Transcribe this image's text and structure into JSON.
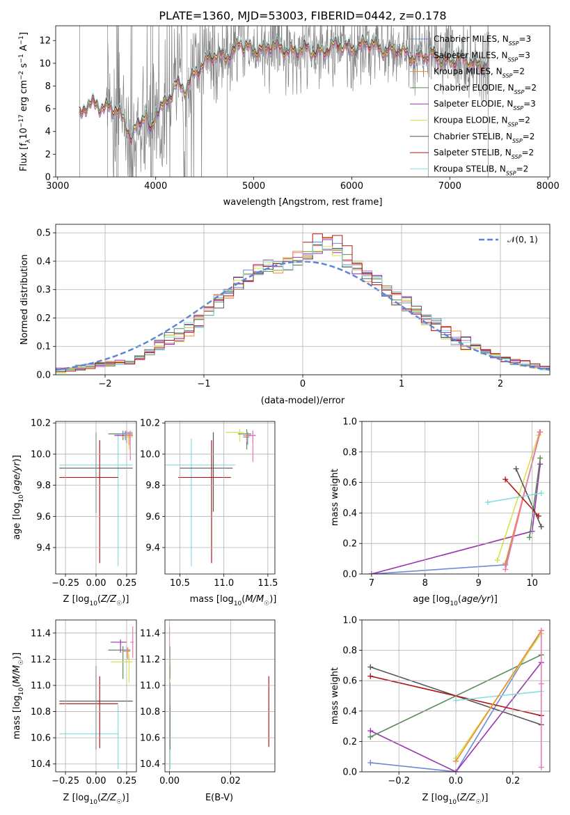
{
  "title": "PLATE=1360, MJD=53003, FIBERID=0442, z=0.178",
  "colors": {
    "data": "#808080",
    "Chabrier MILES": "#6a89d8",
    "Salpeter MILES": "#e879b6",
    "Kroupa MILES": "#f08a2e",
    "Chabrier ELODIE": "#5a8a5a",
    "Salpeter ELODIE": "#9a33b0",
    "Kroupa ELODIE": "#d6e34a",
    "Chabrier STELIB": "#555555",
    "Salpeter STELIB": "#b01818",
    "Kroupa STELIB": "#87dede",
    "gaussian": "#5b86d6"
  },
  "legend": [
    {
      "name": "Chabrier MILES",
      "nssp": "3"
    },
    {
      "name": "Salpeter MILES",
      "nssp": "3"
    },
    {
      "name": "Kroupa MILES",
      "nssp": "2"
    },
    {
      "name": "Chabrier ELODIE",
      "nssp": "2"
    },
    {
      "name": "Salpeter ELODIE",
      "nssp": "3"
    },
    {
      "name": "Kroupa ELODIE",
      "nssp": "2"
    },
    {
      "name": "Chabrier STELIB",
      "nssp": "2"
    },
    {
      "name": "Salpeter STELIB",
      "nssp": "2"
    },
    {
      "name": "Kroupa STELIB",
      "nssp": "2"
    }
  ],
  "chart_data": [
    {
      "id": "spectrum",
      "type": "line",
      "xlabel": "wavelength [Angstrom, rest frame]",
      "ylabel": "Flux [f_λ 10^-17 erg cm^-2 s^-1 A^-1]",
      "xlim": [
        2980,
        8020
      ],
      "ylim": [
        0,
        13.3
      ],
      "xticks": [
        3000,
        4000,
        5000,
        6000,
        7000,
        8000
      ],
      "yticks": [
        0,
        2,
        4,
        6,
        8,
        10,
        12
      ],
      "grid": false,
      "legend_position": "right",
      "data_range": [
        3220,
        7400
      ],
      "model_range": [
        3220,
        7400
      ],
      "continuum_points": {
        "x": [
          3220,
          3300,
          3400,
          3500,
          3600,
          3700,
          3750,
          3800,
          3900,
          3950,
          4000,
          4100,
          4200,
          4300,
          4400,
          4600,
          4800,
          4860,
          4900,
          5000,
          5200,
          5400,
          5600,
          5800,
          6000,
          6200,
          6400,
          6600,
          6800,
          7000,
          7200,
          7400
        ],
        "y": [
          5.2,
          6.2,
          6.5,
          6.2,
          5.8,
          4.6,
          3.6,
          4.5,
          5.5,
          3.4,
          5.9,
          6.6,
          8.0,
          7.6,
          9.4,
          10.6,
          11.0,
          11.9,
          11.2,
          11.3,
          11.4,
          11.2,
          11.0,
          11.4,
          11.5,
          11.6,
          11.2,
          10.7,
          10.6,
          10.3,
          10.1,
          9.9
        ]
      }
    },
    {
      "id": "residuals",
      "type": "step",
      "xlabel": "(data-model)/error",
      "ylabel": "Normed distribution",
      "xlim": [
        -2.5,
        2.5
      ],
      "ylim": [
        0,
        0.53
      ],
      "xticks": [
        -2,
        -1,
        0,
        1,
        2
      ],
      "yticks": [
        0.0,
        0.1,
        0.2,
        0.3,
        0.4,
        0.5
      ],
      "grid": true,
      "legend_position": "top-right",
      "gaussian_label": "𝒩(0, 1)",
      "bins": [
        -2.6,
        -2.5,
        -2.4,
        -2.3,
        -2.2,
        -2.1,
        -2.0,
        -1.9,
        -1.8,
        -1.7,
        -1.6,
        -1.5,
        -1.4,
        -1.3,
        -1.2,
        -1.1,
        -1.0,
        -0.9,
        -0.8,
        -0.7,
        -0.6,
        -0.5,
        -0.4,
        -0.3,
        -0.2,
        -0.1,
        0.0,
        0.1,
        0.2,
        0.3,
        0.4,
        0.5,
        0.6,
        0.7,
        0.8,
        0.9,
        1.0,
        1.1,
        1.2,
        1.3,
        1.4,
        1.5,
        1.6,
        1.7,
        1.8,
        1.9,
        2.0,
        2.1,
        2.2,
        2.3,
        2.4,
        2.5,
        2.6
      ],
      "base_values": [
        0.012,
        0.015,
        0.02,
        0.025,
        0.03,
        0.034,
        0.04,
        0.044,
        0.04,
        0.062,
        0.08,
        0.11,
        0.13,
        0.14,
        0.16,
        0.19,
        0.22,
        0.26,
        0.29,
        0.32,
        0.345,
        0.37,
        0.38,
        0.375,
        0.39,
        0.41,
        0.42,
        0.445,
        0.46,
        0.44,
        0.4,
        0.38,
        0.35,
        0.33,
        0.29,
        0.27,
        0.25,
        0.22,
        0.2,
        0.18,
        0.15,
        0.13,
        0.11,
        0.1,
        0.08,
        0.065,
        0.055,
        0.045,
        0.04,
        0.03,
        0.025,
        0.02
      ]
    },
    {
      "id": "age-vs-Z",
      "type": "errorbar",
      "xlabel": "Z [log10(Z/Z☉)]",
      "ylabel": "age [log10(age/yr)]",
      "xlim": [
        -0.33,
        0.33
      ],
      "ylim": [
        9.23,
        10.21
      ],
      "xticks": [
        -0.25,
        0.0,
        0.25
      ],
      "yticks": [
        9.4,
        9.6,
        9.8,
        10.0,
        10.2
      ],
      "grid": true,
      "points": [
        {
          "model": "Kroupa STELIB",
          "x": 0.18,
          "y": 9.93,
          "xerr": [
            0.48,
            0.12
          ],
          "yerr": [
            0.65,
            0.2
          ]
        },
        {
          "model": "Chabrier STELIB",
          "x": 0.0,
          "y": 9.91,
          "xerr": [
            0.3,
            0.3
          ],
          "yerr": [
            0.29,
            0.23
          ]
        },
        {
          "model": "Salpeter STELIB",
          "x": 0.03,
          "y": 9.85,
          "xerr": [
            0.33,
            0.15
          ],
          "yerr": [
            0.55,
            0.24
          ]
        },
        {
          "model": "Chabrier ELODIE",
          "x": 0.22,
          "y": 10.13,
          "xerr": [
            0.12,
            0.08
          ],
          "yerr": [
            0.04,
            0.02
          ]
        },
        {
          "model": "Salpeter ELODIE",
          "x": 0.25,
          "y": 10.12,
          "xerr": [
            0.1,
            0.05
          ],
          "yerr": [
            0.05,
            0.03
          ]
        },
        {
          "model": "Kroupa ELODIE",
          "x": 0.27,
          "y": 10.11,
          "xerr": [
            0.06,
            0.03
          ],
          "yerr": [
            0.08,
            0.03
          ]
        },
        {
          "model": "Salpeter MILES",
          "x": 0.28,
          "y": 10.14,
          "xerr": [
            0.05,
            0.02
          ],
          "yerr": [
            0.18,
            0.01
          ]
        },
        {
          "model": "Kroupa MILES",
          "x": 0.27,
          "y": 10.12,
          "xerr": [
            0.04,
            0.02
          ],
          "yerr": [
            0.06,
            0.02
          ]
        },
        {
          "model": "Chabrier MILES",
          "x": 0.24,
          "y": 10.13,
          "xerr": [
            0.06,
            0.03
          ],
          "yerr": [
            0.04,
            0.02
          ]
        }
      ]
    },
    {
      "id": "age-vs-mass",
      "type": "errorbar",
      "xlabel": "mass [log10(M/M☉)]",
      "ylabel": "",
      "xlim": [
        10.33,
        11.58
      ],
      "ylim": [
        9.23,
        10.21
      ],
      "xticks": [
        10.5,
        11.0,
        11.5
      ],
      "yticks": [
        9.4,
        9.6,
        9.8,
        10.0,
        10.2
      ],
      "grid": true,
      "points": [
        {
          "model": "Kroupa STELIB",
          "x": 10.63,
          "y": 9.93,
          "xerr": [
            0.3,
            0.5
          ],
          "yerr": [
            0.65,
            0.17
          ]
        },
        {
          "model": "Chabrier STELIB",
          "x": 10.88,
          "y": 9.91,
          "xerr": [
            0.38,
            0.22
          ],
          "yerr": [
            0.28,
            0.23
          ]
        },
        {
          "model": "Salpeter STELIB",
          "x": 10.86,
          "y": 9.85,
          "xerr": [
            0.38,
            0.22
          ],
          "yerr": [
            0.55,
            0.24
          ]
        },
        {
          "model": "Kroupa ELODIE",
          "x": 11.18,
          "y": 10.14,
          "xerr": [
            0.16,
            0.05
          ],
          "yerr": [
            0.06,
            0.02
          ]
        },
        {
          "model": "Chabrier ELODIE",
          "x": 11.26,
          "y": 10.13,
          "xerr": [
            0.1,
            0.05
          ],
          "yerr": [
            0.1,
            0.03
          ]
        },
        {
          "model": "Salpeter ELODIE",
          "x": 11.33,
          "y": 10.12,
          "xerr": [
            0.06,
            0.03
          ],
          "yerr": [
            0.05,
            0.03
          ]
        },
        {
          "model": "Salpeter MILES",
          "x": 11.33,
          "y": 10.12,
          "xerr": [
            0.02,
            0.02
          ],
          "yerr": [
            0.17,
            0.03
          ]
        },
        {
          "model": "Chabrier MILES",
          "x": 11.27,
          "y": 10.11,
          "xerr": [
            0.05,
            0.02
          ],
          "yerr": [
            0.05,
            0.03
          ]
        },
        {
          "model": "Kroupa MILES",
          "x": 11.26,
          "y": 10.12,
          "xerr": [
            0.04,
            0.02
          ],
          "yerr": [
            0.04,
            0.02
          ]
        }
      ]
    },
    {
      "id": "mass-weight-vs-age",
      "type": "line",
      "xlabel": "age [log10(age/yr)]",
      "ylabel": "mass weight",
      "xlim": [
        6.82,
        10.33
      ],
      "ylim": [
        0,
        1.0
      ],
      "xticks": [
        7,
        8,
        9,
        10
      ],
      "yticks": [
        0.0,
        0.2,
        0.4,
        0.6,
        0.8,
        1.0
      ],
      "grid": true,
      "series": [
        {
          "model": "Chabrier MILES",
          "x": [
            7.0,
            9.5,
            10.15
          ],
          "y": [
            0.0,
            0.06,
            0.93
          ]
        },
        {
          "model": "Salpeter ELODIE",
          "x": [
            7.0,
            10.0,
            10.15
          ],
          "y": [
            0.0,
            0.28,
            0.72
          ]
        },
        {
          "model": "Kroupa ELODIE",
          "x": [
            9.35,
            10.12
          ],
          "y": [
            0.09,
            0.91
          ]
        },
        {
          "model": "Kroupa MILES",
          "x": [
            9.5,
            10.15
          ],
          "y": [
            0.07,
            0.93
          ]
        },
        {
          "model": "Salpeter MILES",
          "x": [
            9.5,
            10.14
          ],
          "y": [
            0.03,
            0.93
          ]
        },
        {
          "model": "Chabrier ELODIE",
          "x": [
            9.95,
            10.15
          ],
          "y": [
            0.24,
            0.76
          ]
        },
        {
          "model": "Chabrier STELIB",
          "x": [
            9.7,
            10.17
          ],
          "y": [
            0.69,
            0.31
          ]
        },
        {
          "model": "Salpeter STELIB",
          "x": [
            9.5,
            10.12
          ],
          "y": [
            0.62,
            0.38
          ]
        },
        {
          "model": "Kroupa STELIB",
          "x": [
            9.17,
            10.17
          ],
          "y": [
            0.47,
            0.53
          ]
        }
      ]
    },
    {
      "id": "mass-vs-Z",
      "type": "errorbar",
      "xlabel": "Z [log10(Z/Z☉)]",
      "ylabel": "mass [log10(M/M☉)]",
      "xlim": [
        -0.33,
        0.33
      ],
      "ylim": [
        10.34,
        11.5
      ],
      "xticks": [
        -0.25,
        0.0,
        0.25
      ],
      "yticks": [
        10.4,
        10.6,
        10.8,
        11.0,
        11.2,
        11.4
      ],
      "grid": true,
      "points": [
        {
          "model": "Kroupa STELIB",
          "x": 0.18,
          "y": 10.63,
          "xerr": [
            0.48,
            0.0
          ],
          "yerr": [
            0.27,
            0.22
          ]
        },
        {
          "model": "Chabrier STELIB",
          "x": 0.0,
          "y": 10.88,
          "xerr": [
            0.3,
            0.3
          ],
          "yerr": [
            0.37,
            0.27
          ]
        },
        {
          "model": "Salpeter STELIB",
          "x": 0.03,
          "y": 10.86,
          "xerr": [
            0.33,
            0.15
          ],
          "yerr": [
            0.34,
            0.21
          ]
        },
        {
          "model": "Chabrier ELODIE",
          "x": 0.22,
          "y": 11.27,
          "xerr": [
            0.12,
            0.06
          ],
          "yerr": [
            0.22,
            0.03
          ]
        },
        {
          "model": "Kroupa ELODIE",
          "x": 0.27,
          "y": 11.18,
          "xerr": [
            0.15,
            0.03
          ],
          "yerr": [
            0.16,
            0.06
          ]
        },
        {
          "model": "Salpeter ELODIE",
          "x": 0.2,
          "y": 11.33,
          "xerr": [
            0.08,
            0.05
          ],
          "yerr": [
            0.08,
            0.02
          ]
        },
        {
          "model": "Salpeter MILES",
          "x": 0.3,
          "y": 11.33,
          "xerr": [
            0.02,
            0.01
          ],
          "yerr": [
            0.12,
            0.12
          ]
        },
        {
          "model": "Chabrier MILES",
          "x": 0.25,
          "y": 11.27,
          "xerr": [
            0.05,
            0.03
          ],
          "yerr": [
            0.06,
            0.03
          ]
        },
        {
          "model": "Kroupa MILES",
          "x": 0.26,
          "y": 11.26,
          "xerr": [
            0.04,
            0.02
          ],
          "yerr": [
            0.06,
            0.03
          ]
        }
      ]
    },
    {
      "id": "mass-vs-ebv",
      "type": "errorbar",
      "xlabel": "E(B-V)",
      "ylabel": "",
      "xlim": [
        -0.0015,
        0.0345
      ],
      "ylim": [
        10.34,
        11.5
      ],
      "xticks": [
        0.0,
        0.02
      ],
      "yticks": [
        10.4,
        10.6,
        10.8,
        11.0,
        11.2,
        11.4
      ],
      "grid": true,
      "points": [
        {
          "model": "Salpeter STELIB",
          "x": 0.0325,
          "y": 10.8,
          "xerr": [
            0,
            0
          ],
          "yerr": [
            0.27,
            0.27
          ]
        },
        {
          "model": "Kroupa STELIB",
          "x": 0.0002,
          "y": 10.63,
          "xerr": [
            0,
            0
          ],
          "yerr": [
            0.27,
            0.22
          ]
        },
        {
          "model": "Chabrier STELIB",
          "x": 0.0001,
          "y": 10.88,
          "xerr": [
            0,
            0
          ],
          "yerr": [
            0.37,
            0.27
          ]
        },
        {
          "model": "Salpeter MILES",
          "x": 0.0,
          "y": 11.33,
          "xerr": [
            0,
            0
          ],
          "yerr": [
            0.12,
            0.12
          ]
        },
        {
          "model": "Kroupa ELODIE",
          "x": 0.0001,
          "y": 11.18,
          "xerr": [
            0,
            0
          ],
          "yerr": [
            0.16,
            0.06
          ]
        },
        {
          "model": "Chabrier ELODIE",
          "x": 0.0001,
          "y": 11.27,
          "xerr": [
            0,
            0
          ],
          "yerr": [
            0.22,
            0.03
          ]
        }
      ]
    },
    {
      "id": "mass-weight-vs-Z",
      "type": "line",
      "xlabel": "Z [log10(Z/Z☉)]",
      "ylabel": "mass weight",
      "xlim": [
        -0.33,
        0.33
      ],
      "ylim": [
        0,
        1.0
      ],
      "xticks": [
        -0.2,
        0.0,
        0.2
      ],
      "yticks": [
        0.0,
        0.2,
        0.4,
        0.6,
        0.8,
        1.0
      ],
      "grid": true,
      "series": [
        {
          "model": "Chabrier MILES",
          "x": [
            -0.3,
            0.0,
            0.3
          ],
          "y": [
            0.06,
            0.0,
            0.93
          ]
        },
        {
          "model": "Salpeter ELODIE",
          "x": [
            -0.3,
            0.0,
            0.3
          ],
          "y": [
            0.27,
            0.0,
            0.72
          ]
        },
        {
          "model": "Chabrier ELODIE",
          "x": [
            -0.3,
            0.3
          ],
          "y": [
            0.23,
            0.77
          ]
        },
        {
          "model": "Chabrier STELIB",
          "x": [
            -0.3,
            0.3
          ],
          "y": [
            0.69,
            0.31
          ]
        },
        {
          "model": "Salpeter STELIB",
          "x": [
            -0.3,
            0.3
          ],
          "y": [
            0.63,
            0.37
          ]
        },
        {
          "model": "Kroupa STELIB",
          "x": [
            0.0,
            0.3
          ],
          "y": [
            0.47,
            0.53
          ]
        },
        {
          "model": "Kroupa ELODIE",
          "x": [
            0.0,
            0.3
          ],
          "y": [
            0.09,
            0.91
          ]
        },
        {
          "model": "Kroupa MILES",
          "x": [
            0.0,
            0.3
          ],
          "y": [
            0.07,
            0.93
          ]
        },
        {
          "model": "Salpeter MILES",
          "x": [
            0.3,
            0.3,
            0.3
          ],
          "y": [
            0.03,
            0.58,
            0.93
          ]
        }
      ]
    }
  ]
}
